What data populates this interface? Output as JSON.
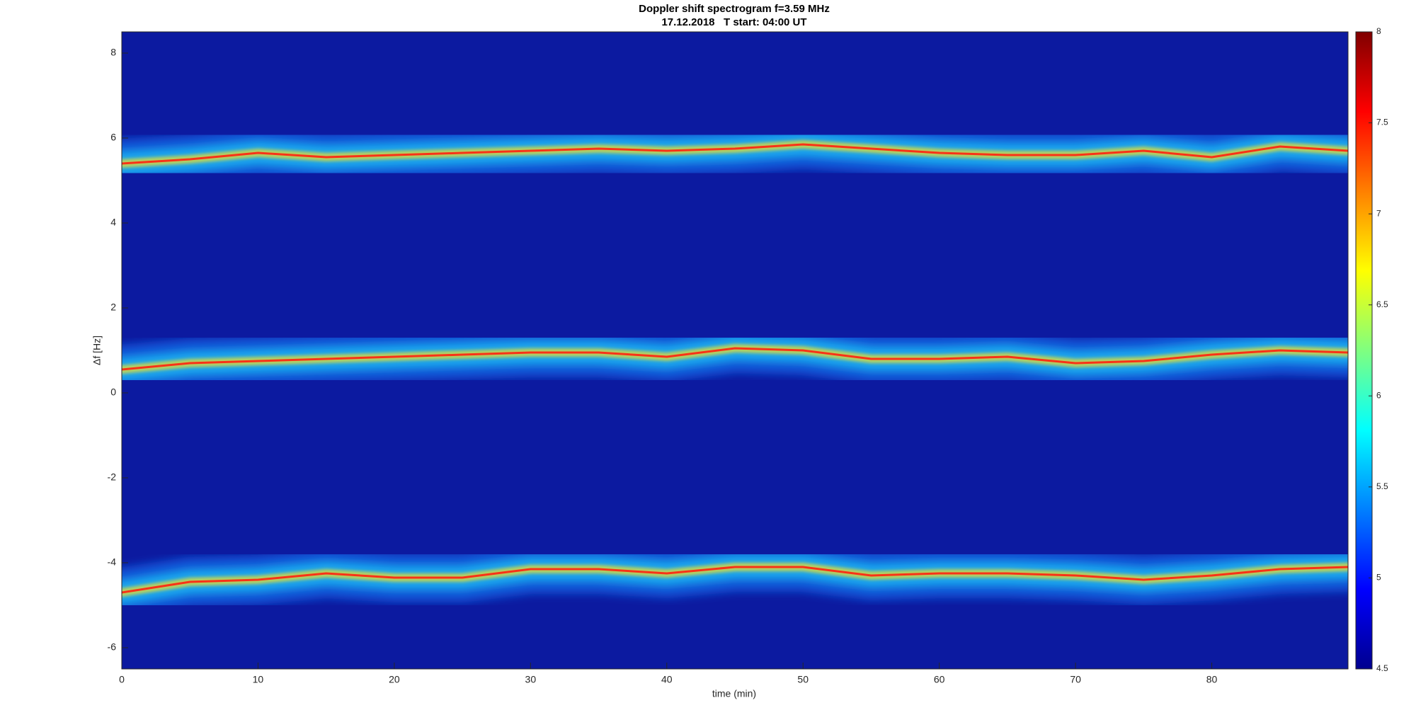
{
  "chart_data": {
    "type": "spectrogram",
    "title": "Doppler shift spectrogram f=3.59 MHz",
    "subtitle": "17.12.2018   T start: 04:00 UT",
    "xlabel": "time (min)",
    "ylabel": "Δf [Hz]",
    "x": [
      0,
      5,
      10,
      15,
      20,
      25,
      30,
      35,
      40,
      45,
      50,
      55,
      60,
      65,
      70,
      75,
      80,
      85,
      90
    ],
    "series": [
      {
        "values": [
          5.4,
          5.5,
          5.65,
          5.55,
          5.6,
          5.65,
          5.7,
          5.75,
          5.7,
          5.75,
          5.85,
          5.75,
          5.65,
          5.6,
          5.6,
          5.7,
          5.55,
          5.8,
          5.7
        ]
      },
      {
        "values": [
          0.55,
          0.7,
          0.75,
          0.8,
          0.85,
          0.9,
          0.95,
          0.95,
          0.85,
          1.05,
          1.0,
          0.8,
          0.8,
          0.85,
          0.7,
          0.75,
          0.9,
          1.0,
          0.95
        ]
      },
      {
        "values": [
          -4.7,
          -4.45,
          -4.4,
          -4.25,
          -4.35,
          -4.35,
          -4.15,
          -4.15,
          -4.25,
          -4.1,
          -4.1,
          -4.3,
          -4.25,
          -4.25,
          -4.3,
          -4.4,
          -4.3,
          -4.15,
          -4.1
        ]
      }
    ],
    "xlim": [
      0,
      90
    ],
    "xticks": [
      0,
      10,
      20,
      30,
      40,
      50,
      60,
      70,
      80
    ],
    "ylim": [
      -6.5,
      8.5
    ],
    "yticks": [
      -6,
      -4,
      -2,
      0,
      2,
      4,
      6,
      8
    ],
    "colormap": "jet",
    "clim": [
      4.5,
      8
    ],
    "cticks": [
      4.5,
      5,
      5.5,
      6,
      6.5,
      7,
      7.5,
      8
    ]
  }
}
